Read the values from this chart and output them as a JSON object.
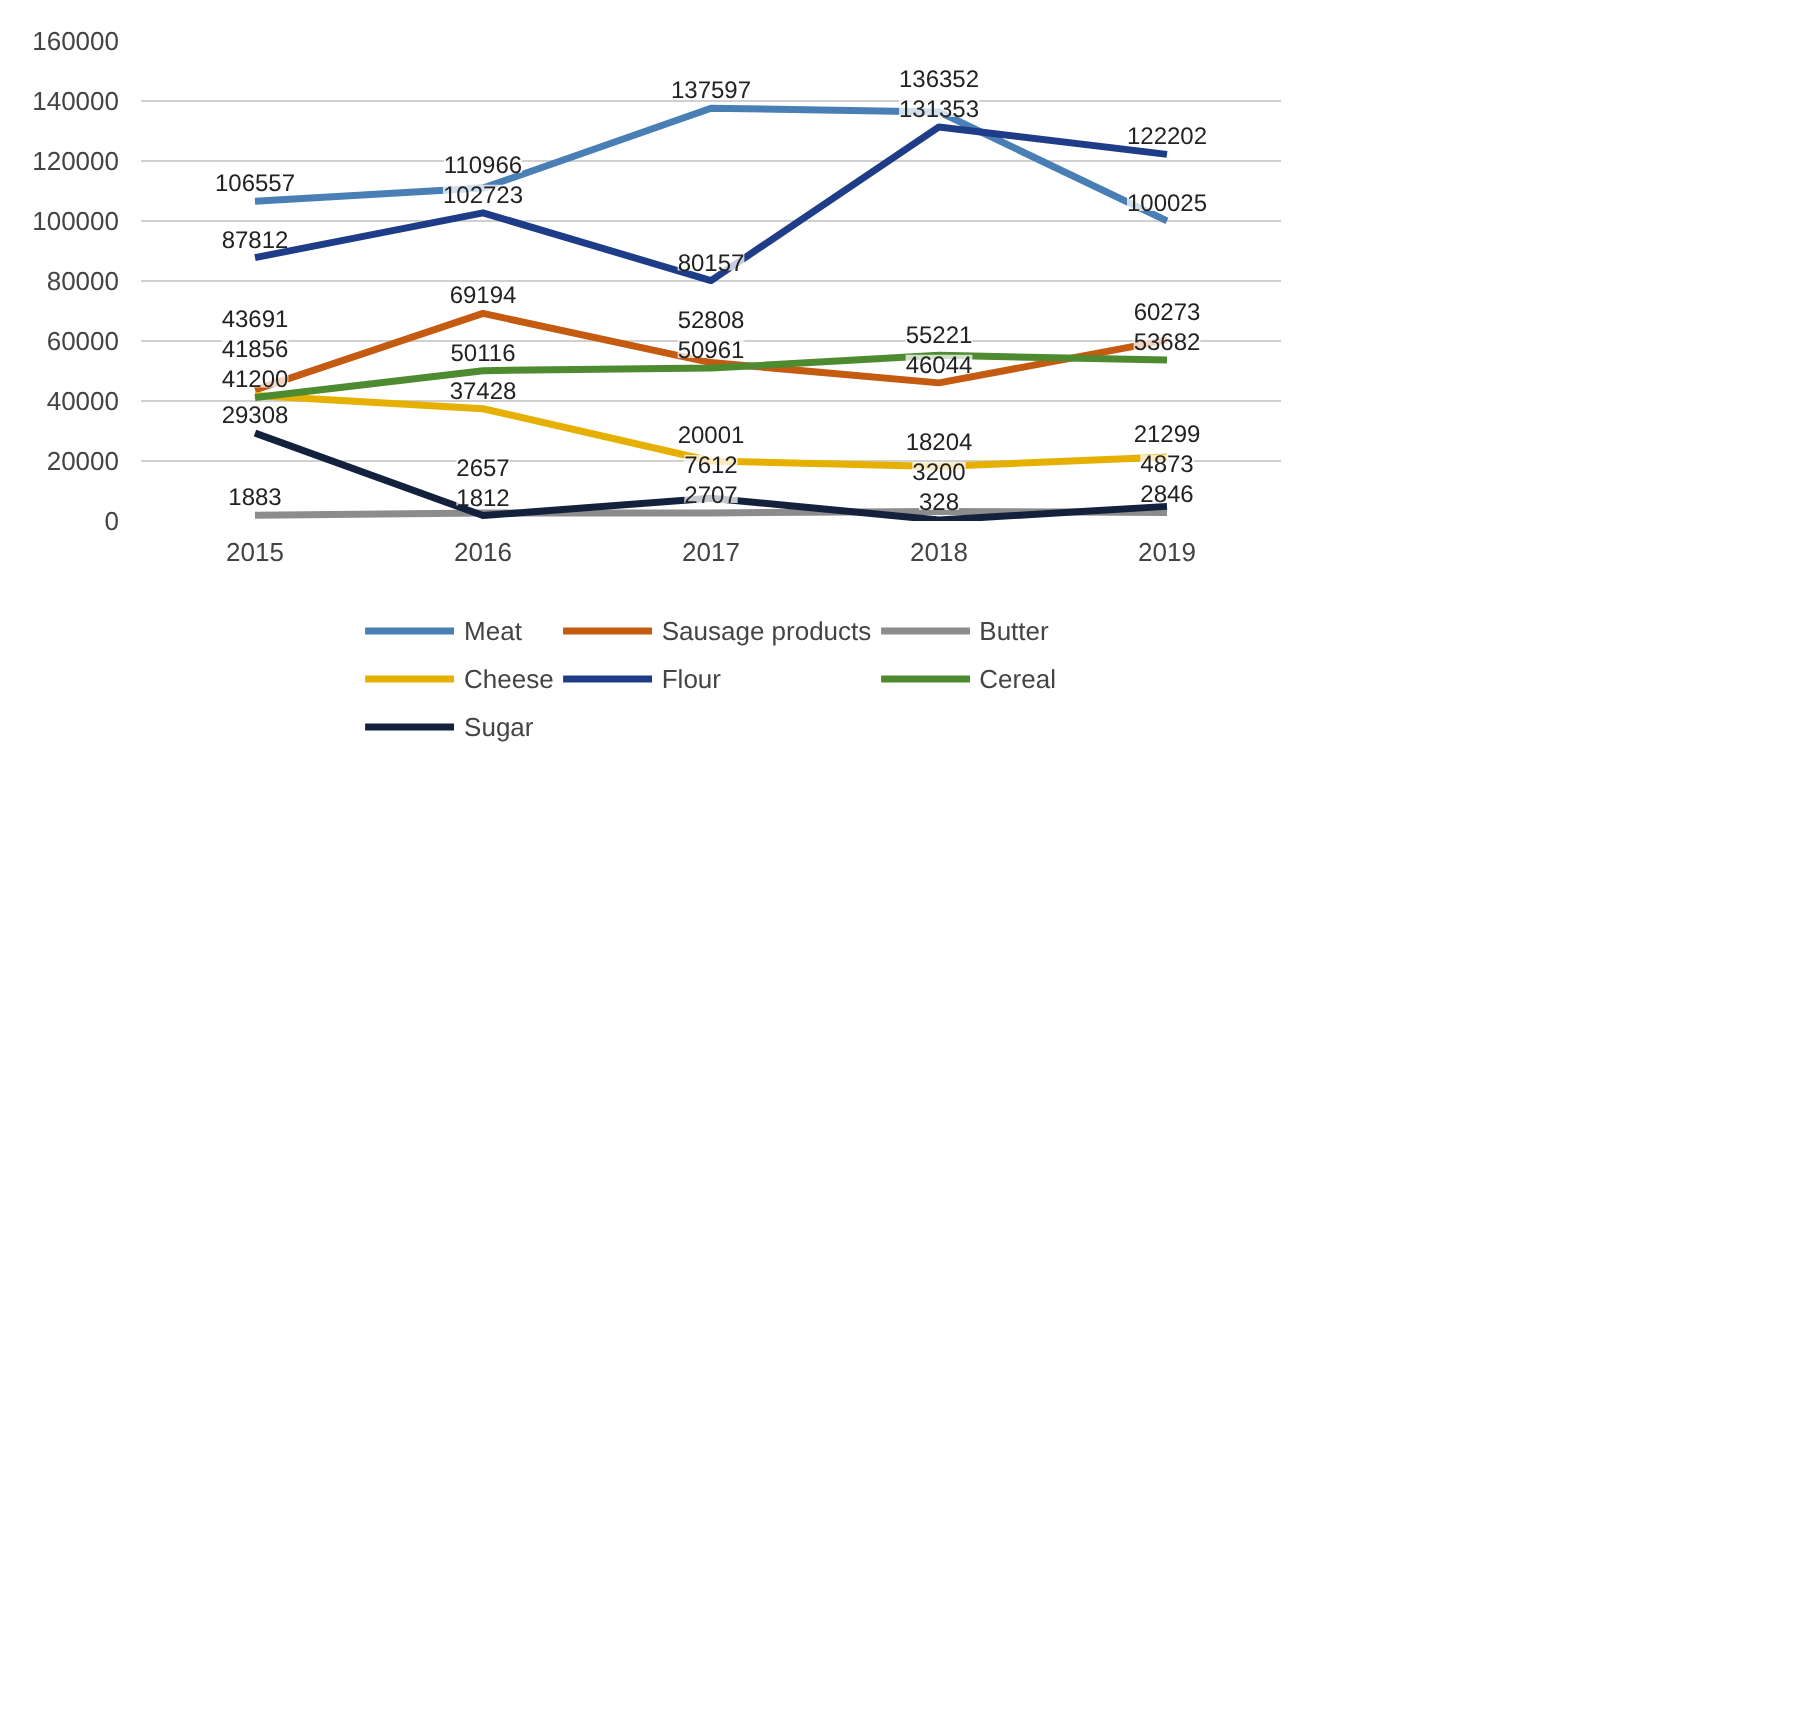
{
  "chart_data": {
    "type": "line",
    "categories": [
      "2015",
      "2016",
      "2017",
      "2018",
      "2019"
    ],
    "ylim": [
      0,
      160000
    ],
    "yticks": [
      0,
      20000,
      40000,
      60000,
      80000,
      100000,
      120000,
      140000,
      160000
    ],
    "grid": "y",
    "legend": "bottom",
    "data_labels": true,
    "marker": "none",
    "line_style": "solid",
    "series": [
      {
        "name": "Meat",
        "color": "#4a7fb5",
        "values": [
          106557,
          110966,
          137597,
          136352,
          100025
        ]
      },
      {
        "name": "Sausage products",
        "color": "#c55a11",
        "values": [
          43691,
          69194,
          52808,
          46044,
          60273
        ]
      },
      {
        "name": "Butter",
        "color": "#8c8c8c",
        "values": [
          1883,
          2657,
          2707,
          3200,
          2846
        ]
      },
      {
        "name": "Cheese",
        "color": "#e6b000",
        "values": [
          41856,
          37428,
          20001,
          18204,
          21299
        ]
      },
      {
        "name": "Flour",
        "color": "#1f3c88",
        "values": [
          87812,
          102723,
          80157,
          131353,
          122202
        ]
      },
      {
        "name": "Cereal",
        "color": "#4e8a2f",
        "values": [
          41200,
          50116,
          50961,
          55221,
          53682
        ]
      },
      {
        "name": "Sugar",
        "color": "#14213d",
        "values": [
          29308,
          1812,
          7612,
          328,
          4873
        ]
      }
    ]
  }
}
